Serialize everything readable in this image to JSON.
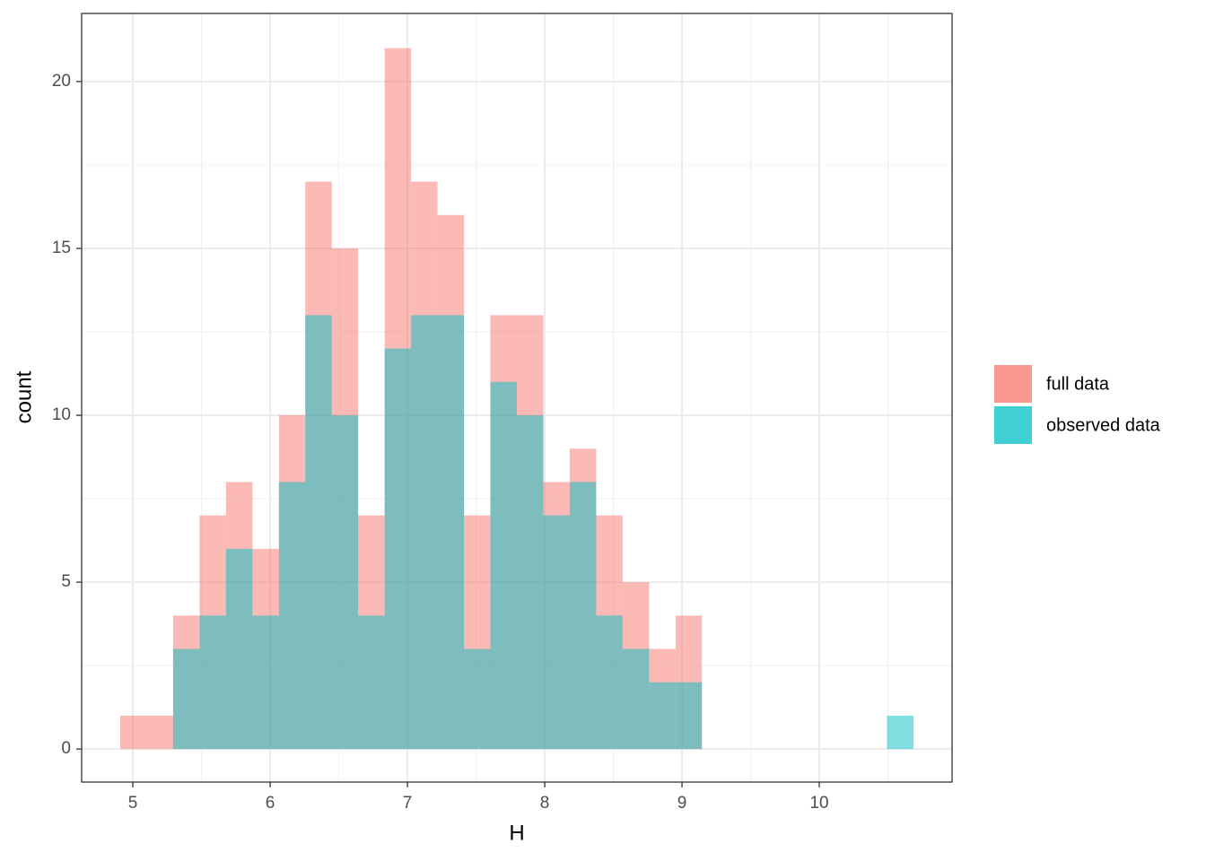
{
  "chart_data": {
    "type": "histogram",
    "x_label": "H",
    "y_label": "count",
    "bins": [
      4.908,
      5.101,
      5.293,
      5.486,
      5.678,
      5.871,
      6.064,
      6.256,
      6.449,
      6.641,
      6.834,
      7.027,
      7.219,
      7.412,
      7.604,
      7.797,
      7.99,
      8.182,
      8.375,
      8.567,
      8.76,
      8.953,
      9.145,
      9.338,
      9.53,
      9.723,
      9.916,
      10.108,
      10.301,
      10.493,
      10.686
    ],
    "series": [
      {
        "name": "full data",
        "color": "#F8766D",
        "values": [
          1,
          1,
          4,
          7,
          8,
          6,
          10,
          17,
          15,
          7,
          21,
          17,
          16,
          7,
          13,
          13,
          8,
          9,
          7,
          5,
          3,
          4,
          0,
          0,
          0,
          0,
          0,
          0,
          0,
          0
        ]
      },
      {
        "name": "observed data",
        "color": "#00BFC4",
        "values": [
          0,
          0,
          3,
          4,
          6,
          4,
          8,
          13,
          10,
          4,
          12,
          13,
          13,
          3,
          11,
          10,
          7,
          8,
          4,
          3,
          2,
          2,
          0,
          0,
          0,
          0,
          0,
          0,
          0,
          1
        ]
      }
    ],
    "xlim": [
      4.627,
      10.967
    ],
    "ylim": [
      -0.99,
      22.04
    ],
    "xticks": [
      5,
      6,
      7,
      8,
      9,
      10
    ],
    "yticks": [
      0,
      5,
      10,
      15,
      20
    ],
    "grid": true,
    "legend": "right"
  }
}
